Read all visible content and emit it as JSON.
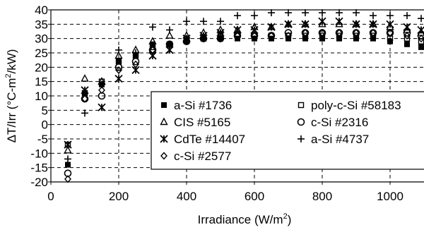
{
  "chart_data": {
    "type": "scatter",
    "title": "",
    "xlabel": "Irradiance (W/m2)",
    "xlabel_parts": {
      "main": "Irradiance (W/m",
      "sup": "2",
      "end": ")"
    },
    "ylabel": "ΔT/Irr (°C-m2/kW)",
    "ylabel_parts": {
      "main": "ΔT/Irr (°C-m",
      "sup": "2",
      "end": "/kW)"
    },
    "xlim": [
      0,
      1100
    ],
    "ylim": [
      -20,
      40
    ],
    "xticks": [
      0,
      200,
      400,
      600,
      800,
      1000
    ],
    "yticks": [
      -20,
      -15,
      -10,
      -5,
      0,
      5,
      10,
      15,
      20,
      25,
      30,
      35,
      40
    ],
    "grid": "dashed",
    "legend_position": "center-right",
    "series": [
      {
        "name": "a-Si #1736",
        "marker": "filled-square",
        "points": [
          [
            50,
            -14
          ],
          [
            100,
            11
          ],
          [
            150,
            14
          ],
          [
            200,
            22
          ],
          [
            250,
            24
          ],
          [
            300,
            28
          ],
          [
            350,
            28
          ],
          [
            400,
            29
          ],
          [
            450,
            30
          ],
          [
            500,
            30
          ],
          [
            550,
            30
          ],
          [
            600,
            30
          ],
          [
            650,
            30
          ],
          [
            700,
            30
          ],
          [
            750,
            30
          ],
          [
            800,
            30
          ],
          [
            850,
            30
          ],
          [
            900,
            30
          ],
          [
            950,
            30
          ],
          [
            1000,
            29
          ],
          [
            1050,
            28
          ],
          [
            1100,
            27
          ]
        ]
      },
      {
        "name": "poly-c-Si #58183",
        "marker": "open-square",
        "points": [
          [
            50,
            -7
          ],
          [
            100,
            11
          ],
          [
            150,
            15
          ],
          [
            200,
            22
          ],
          [
            250,
            24
          ],
          [
            300,
            27
          ],
          [
            350,
            28
          ],
          [
            400,
            30
          ],
          [
            450,
            30
          ],
          [
            500,
            31
          ],
          [
            550,
            31
          ],
          [
            600,
            31
          ],
          [
            650,
            31
          ],
          [
            700,
            31
          ],
          [
            750,
            31
          ],
          [
            800,
            31
          ],
          [
            850,
            31
          ],
          [
            900,
            31
          ],
          [
            950,
            31
          ],
          [
            1000,
            30
          ],
          [
            1050,
            30
          ],
          [
            1100,
            29
          ]
        ]
      },
      {
        "name": "CIS #5165",
        "marker": "open-triangle",
        "points": [
          [
            50,
            -9
          ],
          [
            100,
            16
          ],
          [
            150,
            15
          ],
          [
            200,
            24
          ],
          [
            250,
            26
          ],
          [
            300,
            29
          ],
          [
            350,
            31
          ],
          [
            400,
            31
          ],
          [
            450,
            32
          ],
          [
            500,
            33
          ],
          [
            550,
            33
          ],
          [
            600,
            34
          ],
          [
            650,
            34
          ],
          [
            700,
            35
          ],
          [
            750,
            35
          ],
          [
            800,
            35
          ],
          [
            850,
            35
          ],
          [
            900,
            35
          ],
          [
            950,
            35
          ],
          [
            1000,
            34
          ],
          [
            1050,
            33
          ],
          [
            1100,
            32
          ]
        ]
      },
      {
        "name": "c-Si #2316",
        "marker": "open-circle",
        "points": [
          [
            50,
            -17
          ],
          [
            100,
            9
          ],
          [
            150,
            10
          ],
          [
            200,
            20
          ],
          [
            250,
            22
          ],
          [
            300,
            26
          ],
          [
            350,
            28
          ],
          [
            400,
            29
          ],
          [
            450,
            30
          ],
          [
            500,
            30
          ],
          [
            550,
            31
          ],
          [
            600,
            31
          ],
          [
            650,
            31
          ],
          [
            700,
            32
          ],
          [
            750,
            32
          ],
          [
            800,
            32
          ],
          [
            850,
            32
          ],
          [
            900,
            32
          ],
          [
            950,
            32
          ],
          [
            1000,
            32
          ],
          [
            1050,
            32
          ],
          [
            1100,
            31
          ]
        ]
      },
      {
        "name": "CdTe #14407",
        "marker": "star-x",
        "points": [
          [
            50,
            -7
          ],
          [
            100,
            12
          ],
          [
            150,
            6
          ],
          [
            200,
            16
          ],
          [
            250,
            19
          ],
          [
            300,
            24
          ],
          [
            350,
            26
          ],
          [
            400,
            30
          ],
          [
            450,
            31
          ],
          [
            500,
            32
          ],
          [
            550,
            33
          ],
          [
            600,
            33
          ],
          [
            650,
            34
          ],
          [
            700,
            35
          ],
          [
            750,
            35
          ],
          [
            800,
            36
          ],
          [
            850,
            36
          ],
          [
            900,
            35
          ],
          [
            950,
            35
          ],
          [
            1000,
            35
          ],
          [
            1050,
            34
          ],
          [
            1100,
            33
          ]
        ]
      },
      {
        "name": "a-Si #4737",
        "marker": "plus",
        "points": [
          [
            50,
            -12
          ],
          [
            100,
            4
          ],
          [
            150,
            14
          ],
          [
            200,
            26
          ],
          [
            250,
            25
          ],
          [
            300,
            34
          ],
          [
            350,
            33
          ],
          [
            400,
            36
          ],
          [
            450,
            36
          ],
          [
            500,
            36
          ],
          [
            550,
            38
          ],
          [
            600,
            38
          ],
          [
            650,
            39
          ],
          [
            700,
            39
          ],
          [
            750,
            39
          ],
          [
            800,
            39
          ],
          [
            850,
            39
          ],
          [
            900,
            39
          ],
          [
            950,
            38
          ],
          [
            1000,
            38
          ],
          [
            1050,
            38
          ],
          [
            1100,
            37
          ]
        ]
      },
      {
        "name": "c-Si #2577",
        "marker": "open-diamond",
        "points": [
          [
            50,
            -19
          ],
          [
            100,
            9
          ],
          [
            150,
            12
          ],
          [
            200,
            19
          ],
          [
            250,
            21
          ],
          [
            300,
            26
          ],
          [
            350,
            28
          ],
          [
            400,
            29
          ],
          [
            450,
            30
          ],
          [
            500,
            30
          ],
          [
            550,
            31
          ],
          [
            600,
            31
          ],
          [
            650,
            31
          ],
          [
            700,
            31
          ],
          [
            750,
            32
          ],
          [
            800,
            32
          ],
          [
            850,
            32
          ],
          [
            900,
            32
          ],
          [
            950,
            32
          ],
          [
            1000,
            32
          ],
          [
            1050,
            31
          ],
          [
            1100,
            30
          ]
        ]
      }
    ]
  }
}
